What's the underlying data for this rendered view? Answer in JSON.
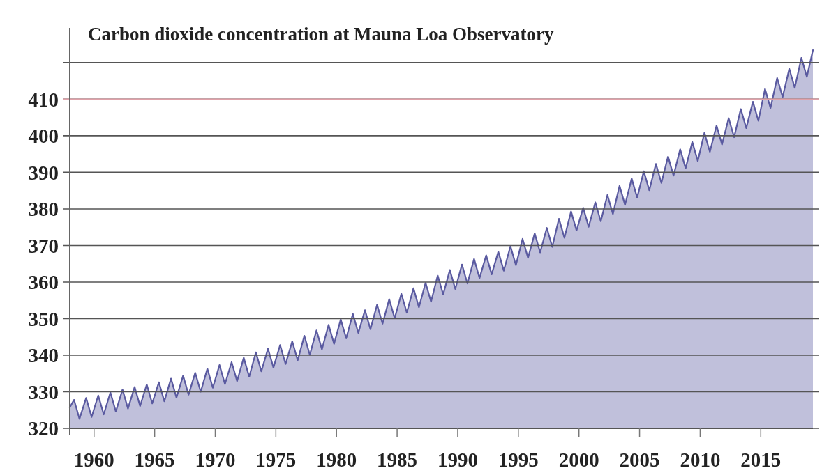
{
  "chart_data": {
    "type": "area",
    "title": "Carbon dioxide concentration at Mauna Loa Observatory",
    "xlim": [
      1958,
      2019.3
    ],
    "xticks": [
      1960,
      1965,
      1970,
      1975,
      1980,
      1985,
      1990,
      1995,
      2000,
      2005,
      2010,
      2015
    ],
    "ylim": [
      320,
      429.5
    ],
    "yticks": [
      320,
      330,
      340,
      350,
      360,
      370,
      380,
      390,
      400,
      410,
      {
        "value": 420,
        "label": null
      }
    ],
    "grid": "y",
    "marker": "none",
    "line_style": "solid",
    "ref_lines": [
      {
        "axis": "y",
        "value": 410,
        "label": null,
        "color": "#e0a0a8"
      }
    ],
    "series": [
      {
        "color": "#5a5aa0",
        "x": [
          1958,
          1958.35,
          1958.8,
          1959.35,
          1959.8,
          1960.35,
          1960.8,
          1961.35,
          1961.8,
          1962.35,
          1962.8,
          1963.35,
          1963.8,
          1964.35,
          1964.8,
          1965.35,
          1965.8,
          1966.35,
          1966.8,
          1967.35,
          1967.8,
          1968.35,
          1968.8,
          1969.35,
          1969.8,
          1970.35,
          1970.8,
          1971.35,
          1971.8,
          1972.35,
          1972.8,
          1973.35,
          1973.8,
          1974.35,
          1974.8,
          1975.35,
          1975.8,
          1976.35,
          1976.8,
          1977.35,
          1977.8,
          1978.35,
          1978.8,
          1979.35,
          1979.8,
          1980.35,
          1980.8,
          1981.35,
          1981.8,
          1982.35,
          1982.8,
          1983.35,
          1983.8,
          1984.35,
          1984.8,
          1985.35,
          1985.8,
          1986.35,
          1986.8,
          1987.35,
          1987.8,
          1988.35,
          1988.8,
          1989.35,
          1989.8,
          1990.35,
          1990.8,
          1991.35,
          1991.8,
          1992.35,
          1992.8,
          1993.35,
          1993.8,
          1994.35,
          1994.8,
          1995.35,
          1995.8,
          1996.35,
          1996.8,
          1997.35,
          1997.8,
          1998.35,
          1998.8,
          1999.35,
          1999.8,
          2000.35,
          2000.8,
          2001.35,
          2001.8,
          2002.35,
          2002.8,
          2003.35,
          2003.8,
          2004.35,
          2004.8,
          2005.35,
          2005.8,
          2006.35,
          2006.8,
          2007.35,
          2007.8,
          2008.35,
          2008.8,
          2009.35,
          2009.8,
          2010.35,
          2010.8,
          2011.35,
          2011.8,
          2012.35,
          2012.8,
          2013.35,
          2013.8,
          2014.35,
          2014.8,
          2015.35,
          2015.8,
          2016.35,
          2016.8,
          2017.35,
          2017.8,
          2018.35,
          2018.8,
          2019.3
        ],
        "values": [
          325.7,
          327.8,
          322.6,
          328.3,
          323.1,
          329.0,
          323.8,
          329.8,
          324.6,
          330.6,
          325.4,
          331.3,
          326.1,
          332.0,
          326.8,
          332.6,
          327.4,
          333.6,
          328.4,
          334.4,
          329.2,
          335.2,
          330.0,
          336.3,
          331.1,
          337.3,
          332.1,
          338.1,
          332.9,
          339.3,
          334.1,
          340.8,
          335.6,
          341.8,
          336.6,
          342.8,
          337.6,
          343.8,
          338.6,
          345.3,
          340.1,
          346.8,
          341.6,
          348.3,
          343.1,
          349.8,
          344.6,
          351.3,
          346.1,
          352.3,
          347.1,
          353.8,
          348.6,
          355.3,
          350.1,
          356.8,
          351.6,
          358.3,
          353.1,
          359.8,
          354.6,
          361.8,
          356.6,
          363.3,
          358.1,
          364.8,
          359.6,
          366.3,
          361.1,
          367.3,
          362.1,
          368.3,
          363.1,
          369.8,
          364.6,
          371.8,
          366.6,
          373.3,
          368.1,
          374.8,
          369.6,
          377.3,
          372.1,
          379.3,
          374.1,
          380.3,
          375.1,
          381.8,
          376.6,
          383.8,
          378.6,
          386.3,
          381.1,
          388.3,
          383.1,
          390.3,
          385.1,
          392.3,
          387.1,
          394.3,
          389.1,
          396.3,
          391.1,
          398.3,
          393.1,
          400.8,
          395.6,
          402.8,
          397.6,
          404.8,
          399.6,
          407.3,
          402.1,
          409.3,
          404.1,
          412.8,
          407.6,
          415.8,
          410.6,
          418.3,
          413.1,
          421.3,
          416.1,
          423.4
        ]
      }
    ]
  }
}
